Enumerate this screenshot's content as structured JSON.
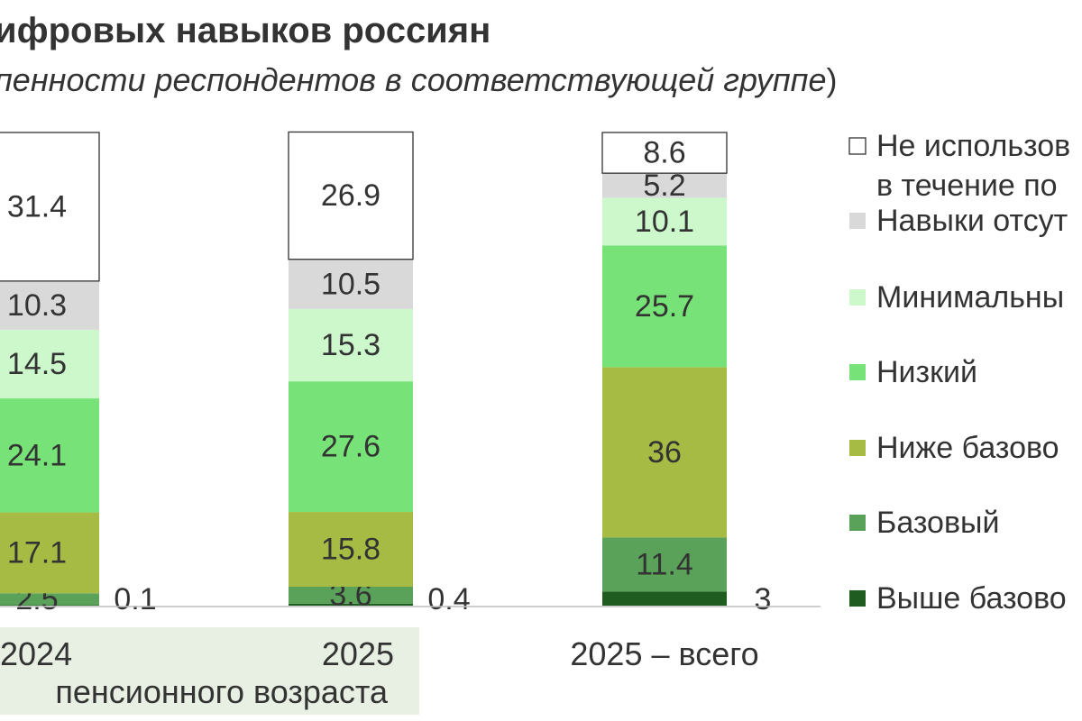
{
  "header": {
    "title": "ифровых навыков россиян",
    "subtitle_main": "пенности респондентов в соответствующей группе",
    "subtitle_close": ")"
  },
  "chart_data": {
    "type": "bar",
    "stacked": true,
    "categories": [
      "2024",
      "2025",
      "2025 – всего"
    ],
    "group_label": "пенсионного возраста",
    "series": [
      {
        "name": "Выше базово",
        "color": "#1f5c1f",
        "values": [
          0.1,
          0.4,
          3
        ]
      },
      {
        "name": "Базовый",
        "color": "#5aa15a",
        "values": [
          2.5,
          3.6,
          11.4
        ]
      },
      {
        "name": "Ниже базово",
        "color": "#a6bb43",
        "values": [
          17.1,
          15.8,
          36
        ]
      },
      {
        "name": "Низкий",
        "color": "#77e277",
        "values": [
          24.1,
          27.6,
          25.7
        ]
      },
      {
        "name": "Минимальны",
        "color": "#ccf8cc",
        "values": [
          14.5,
          15.3,
          10.1
        ]
      },
      {
        "name": "Навыки отсут",
        "color": "#d9d9d9",
        "values": [
          10.3,
          10.5,
          5.2
        ]
      },
      {
        "name": "Не использов в течение по",
        "color": "#ffffff",
        "values": [
          31.4,
          26.9,
          8.6
        ]
      }
    ],
    "legend_entries": [
      {
        "lines": [
          "Не использов",
          "в течение по"
        ],
        "color": "#ffffff"
      },
      {
        "lines": [
          "Навыки отсут"
        ],
        "color": "#d9d9d9"
      },
      {
        "lines": [
          "Минимальны"
        ],
        "color": "#ccf8cc"
      },
      {
        "lines": [
          "Низкий"
        ],
        "color": "#77e277"
      },
      {
        "lines": [
          "Ниже базово"
        ],
        "color": "#a6bb43"
      },
      {
        "lines": [
          "Базовый"
        ],
        "color": "#5aa15a"
      },
      {
        "lines": [
          "Выше базово"
        ],
        "color": "#1f5c1f"
      }
    ],
    "legend_position": "right",
    "grid": false,
    "ylim": [
      0,
      100
    ]
  }
}
